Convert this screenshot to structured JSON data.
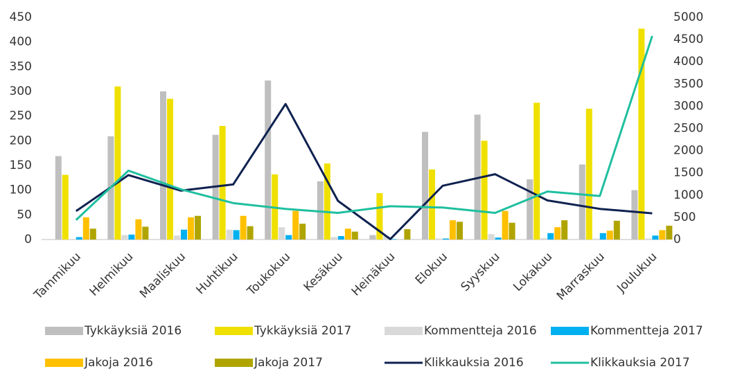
{
  "chart_data": {
    "type": "bar",
    "categories": [
      "Tammikuu",
      "Helmikuu",
      "Maaliskuu",
      "Huhtikuu",
      "Toukokuu",
      "Kesäkuu",
      "Heinäkuu",
      "Elokuu",
      "Syyskuu",
      "Lokakuu",
      "Marraskuu",
      "Joulukuu"
    ],
    "series": [
      {
        "name": "Tykkäyksiä 2016",
        "color": "#bfbfbf",
        "values": [
          169,
          209,
          300,
          212,
          322,
          118,
          9,
          218,
          253,
          122,
          152,
          100
        ]
      },
      {
        "name": "Tykkäyksiä 2017",
        "color": "#f0e000",
        "values": [
          131,
          310,
          285,
          230,
          132,
          154,
          94,
          142,
          200,
          277,
          265,
          427
        ]
      },
      {
        "name": "Kommentteja 2016",
        "color": "#d9d9d9",
        "values": [
          0,
          9,
          8,
          20,
          25,
          5,
          7,
          2,
          11,
          3,
          2,
          2
        ]
      },
      {
        "name": "Kommentteja 2017",
        "color": "#00b0f0",
        "values": [
          5,
          10,
          20,
          19,
          9,
          7,
          1,
          2,
          4,
          13,
          13,
          8
        ]
      },
      {
        "name": "Jakoja 2016",
        "color": "#ffc000",
        "values": [
          45,
          41,
          45,
          48,
          58,
          22,
          0,
          39,
          58,
          25,
          18,
          19
        ]
      },
      {
        "name": "Jakoja 2017",
        "color": "#b0a500",
        "values": [
          22,
          26,
          48,
          27,
          32,
          16,
          21,
          36,
          34,
          39,
          38,
          28
        ]
      },
      {
        "name": "Klikkauksia 2016",
        "color": "#0e2150",
        "type": "line",
        "axis": "y2",
        "values": [
          640,
          1450,
          1100,
          1240,
          3050,
          870,
          10,
          1210,
          1470,
          880,
          690,
          590
        ]
      },
      {
        "name": "Klikkauksia 2017",
        "color": "#1fbf9f",
        "type": "line",
        "axis": "y2",
        "values": [
          440,
          1550,
          1130,
          820,
          690,
          600,
          750,
          720,
          600,
          1080,
          980,
          4580
        ]
      }
    ],
    "ylim": [
      0,
      450
    ],
    "yticks": [
      0,
      50,
      100,
      150,
      200,
      250,
      300,
      350,
      400,
      450
    ],
    "y2lim": [
      0,
      5000
    ],
    "y2ticks": [
      0,
      500,
      1000,
      1500,
      2000,
      2500,
      3000,
      3500,
      4000,
      4500,
      5000
    ],
    "legend": "bottom"
  }
}
